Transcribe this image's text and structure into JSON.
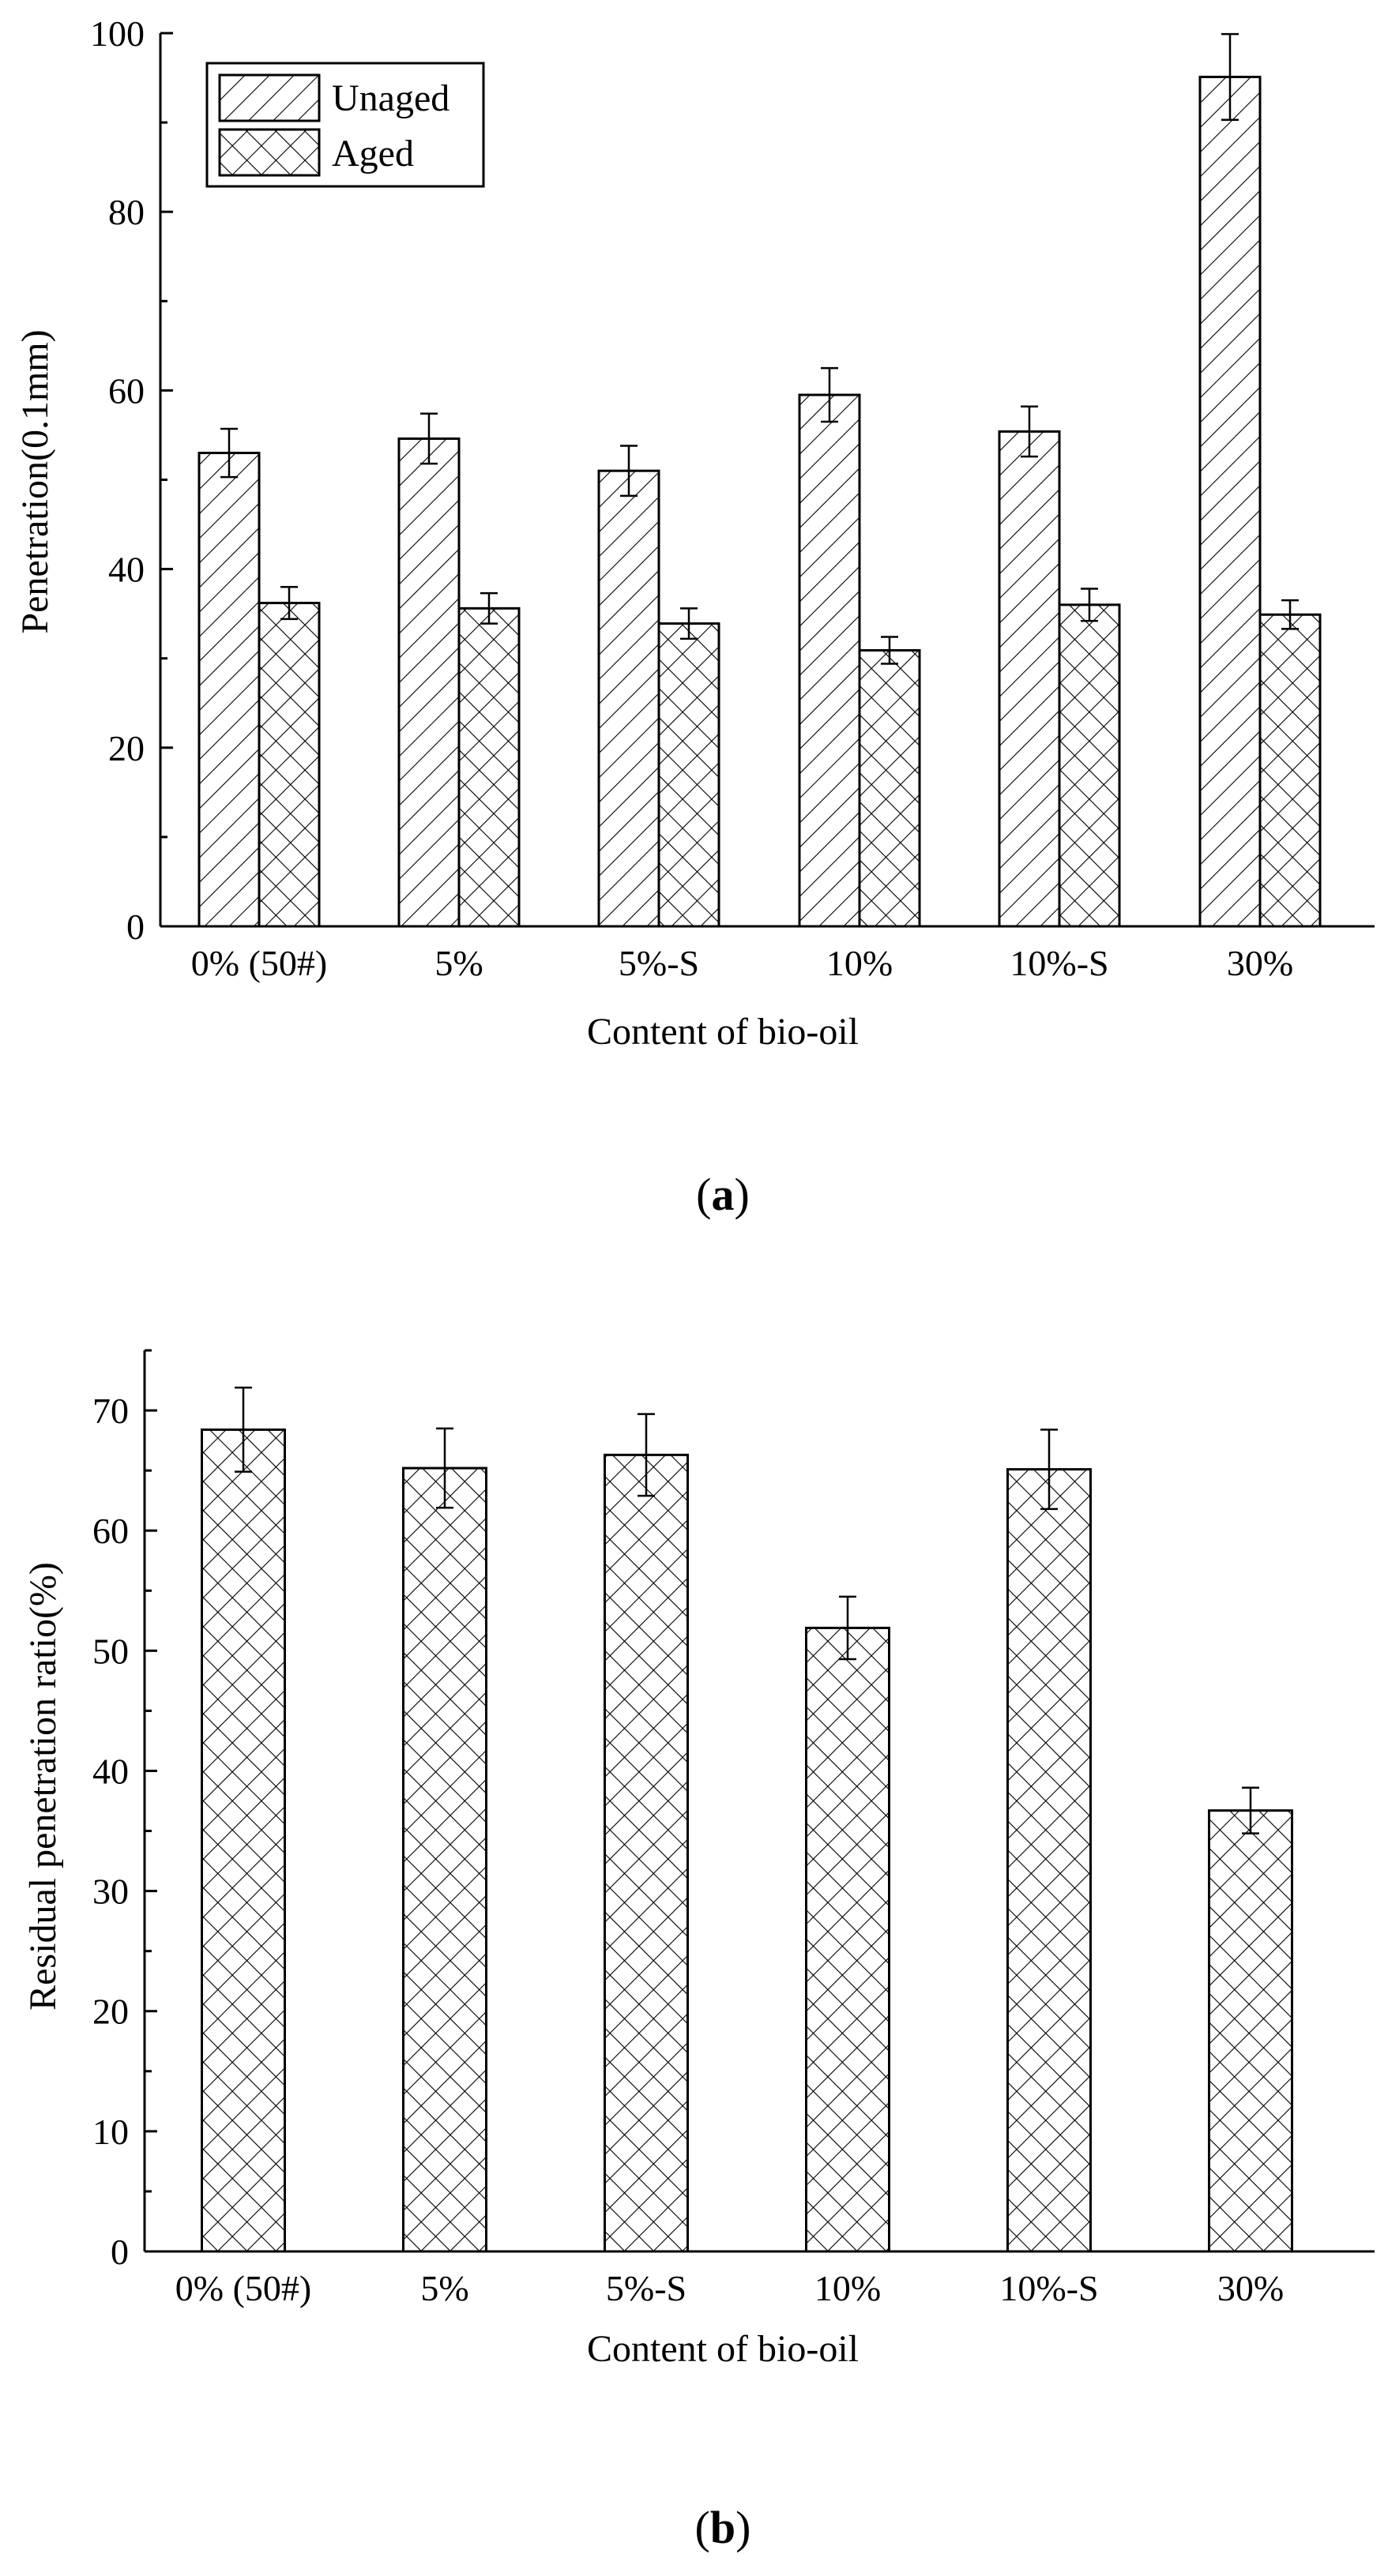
{
  "chart_data": [
    {
      "panel_label": "a",
      "type": "bar",
      "categories": [
        "0% (50#)",
        "5%",
        "5%-S",
        "10%",
        "10%-S",
        "30%"
      ],
      "series": [
        {
          "name": "Unaged",
          "values": [
            53.0,
            54.6,
            51.0,
            59.5,
            55.4,
            95.1
          ],
          "errors": [
            2.7,
            2.8,
            2.8,
            3.0,
            2.8,
            4.8
          ],
          "pattern": "hatch-diag"
        },
        {
          "name": "Aged",
          "values": [
            36.2,
            35.6,
            33.9,
            30.9,
            36.0,
            34.9
          ],
          "errors": [
            1.8,
            1.7,
            1.7,
            1.5,
            1.8,
            1.6
          ],
          "pattern": "hatch-cross"
        }
      ],
      "xlabel": "Content of bio-oil",
      "ylabel": "Penetration(0.1mm)",
      "ylim": [
        0,
        100
      ],
      "yticks": [
        0,
        20,
        40,
        60,
        80,
        100
      ],
      "legend": "top-left"
    },
    {
      "panel_label": "b",
      "type": "bar",
      "categories": [
        "0% (50#)",
        "5%",
        "5%-S",
        "10%",
        "10%-S",
        "30%"
      ],
      "series": [
        {
          "name": "Residual penetration ratio",
          "values": [
            68.4,
            65.2,
            66.3,
            51.9,
            65.1,
            36.7
          ],
          "errors": [
            3.5,
            3.3,
            3.4,
            2.6,
            3.3,
            1.9
          ],
          "pattern": "hatch-cross"
        }
      ],
      "xlabel": "Content of bio-oil",
      "ylabel": "Residual penetration ratio(%)",
      "ylim": [
        0,
        75
      ],
      "yticks": [
        0,
        10,
        20,
        30,
        40,
        50,
        60,
        70
      ]
    }
  ]
}
